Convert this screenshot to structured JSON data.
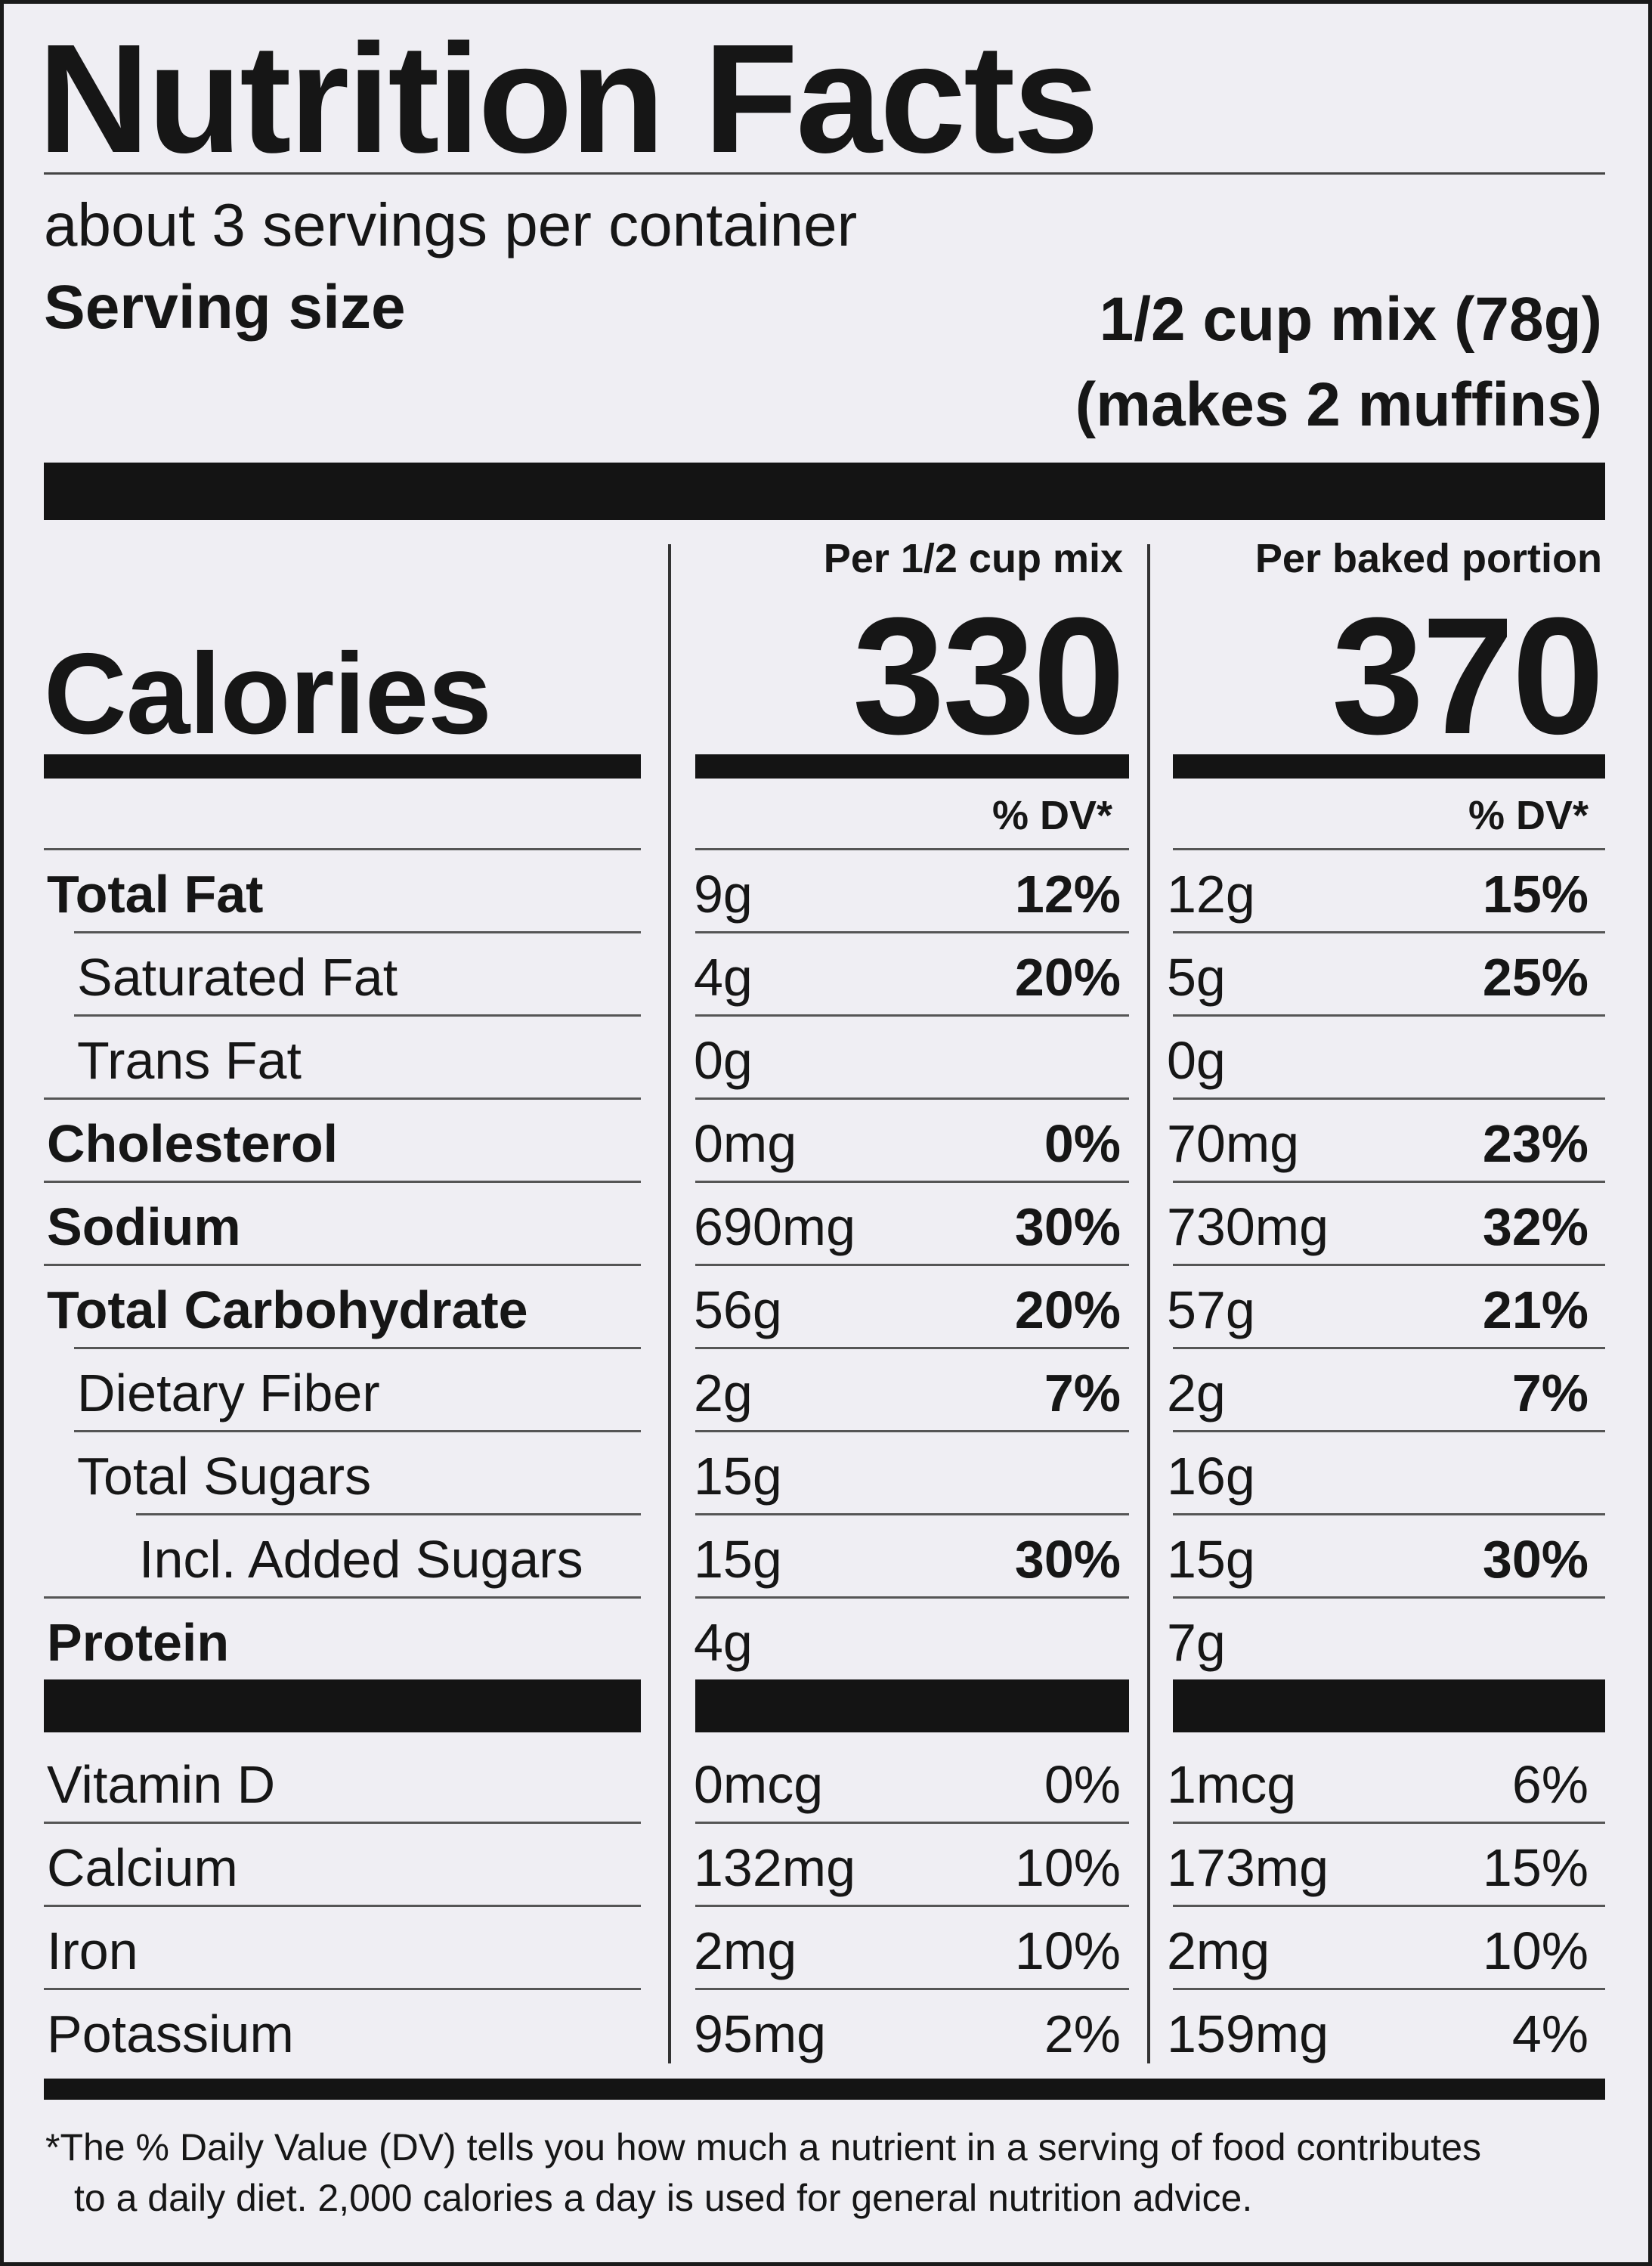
{
  "label": {
    "title": "Nutrition Facts",
    "servings_per_container": "about 3 servings per container",
    "serving_size_label": "Serving size",
    "serving_size_value": "1/2 cup mix (78g)",
    "serving_size_note": "(makes 2 muffins)",
    "calories_label": "Calories",
    "columns": [
      {
        "header": "Per 1/2 cup mix",
        "calories": "330",
        "dv_header": "% DV*"
      },
      {
        "header": "Per baked portion",
        "calories": "370",
        "dv_header": "% DV*"
      }
    ],
    "nutrients": [
      {
        "name": "Total Fat",
        "mix_amount": "9g",
        "mix_dv": "12%",
        "baked_amount": "12g",
        "baked_dv": "15%"
      },
      {
        "name": "Saturated Fat",
        "mix_amount": "4g",
        "mix_dv": "20%",
        "baked_amount": "5g",
        "baked_dv": "25%"
      },
      {
        "name": "Trans Fat",
        "mix_amount": "0g",
        "mix_dv": "",
        "baked_amount": "0g",
        "baked_dv": ""
      },
      {
        "name": "Cholesterol",
        "mix_amount": "0mg",
        "mix_dv": "0%",
        "baked_amount": "70mg",
        "baked_dv": "23%"
      },
      {
        "name": "Sodium",
        "mix_amount": "690mg",
        "mix_dv": "30%",
        "baked_amount": "730mg",
        "baked_dv": "32%"
      },
      {
        "name": "Total Carbohydrate",
        "mix_amount": "56g",
        "mix_dv": "20%",
        "baked_amount": "57g",
        "baked_dv": "21%"
      },
      {
        "name": "Dietary Fiber",
        "mix_amount": "2g",
        "mix_dv": "7%",
        "baked_amount": "2g",
        "baked_dv": "7%"
      },
      {
        "name": "Total Sugars",
        "mix_amount": "15g",
        "mix_dv": "",
        "baked_amount": "16g",
        "baked_dv": ""
      },
      {
        "name": "Incl. Added Sugars",
        "mix_amount": "15g",
        "mix_dv": "30%",
        "baked_amount": "15g",
        "baked_dv": "30%"
      },
      {
        "name": "Protein",
        "mix_amount": "4g",
        "mix_dv": "",
        "baked_amount": "7g",
        "baked_dv": ""
      }
    ],
    "vitamins": [
      {
        "name": "Vitamin D",
        "mix_amount": "0mcg",
        "mix_dv": "0%",
        "baked_amount": "1mcg",
        "baked_dv": "6%"
      },
      {
        "name": "Calcium",
        "mix_amount": "132mg",
        "mix_dv": "10%",
        "baked_amount": "173mg",
        "baked_dv": "15%"
      },
      {
        "name": "Iron",
        "mix_amount": "2mg",
        "mix_dv": "10%",
        "baked_amount": "2mg",
        "baked_dv": "10%"
      },
      {
        "name": "Potassium",
        "mix_amount": "95mg",
        "mix_dv": "2%",
        "baked_amount": "159mg",
        "baked_dv": "4%"
      }
    ],
    "footnote_line1": "*The % Daily Value (DV) tells you how much a nutrient in a serving of food contributes",
    "footnote_line2": "to a daily diet. 2,000 calories a day is used for general nutrition advice."
  }
}
